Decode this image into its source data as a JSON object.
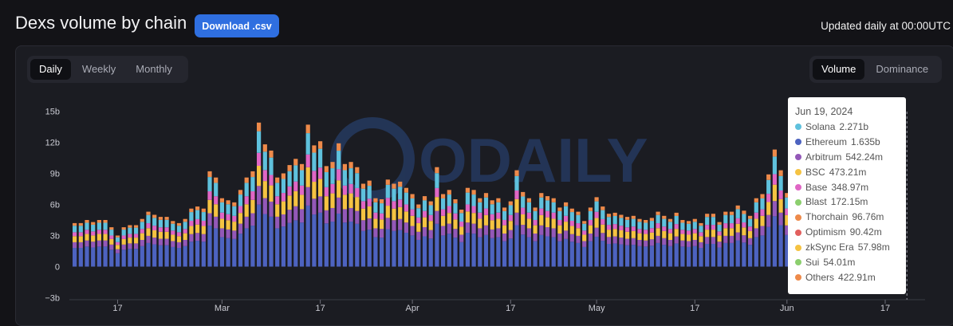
{
  "header": {
    "title": "Dexs volume by chain",
    "download_label": "Download .csv",
    "updated_text": "Updated daily at 00:00UTC"
  },
  "tabs": {
    "period": [
      "Daily",
      "Weekly",
      "Monthly"
    ],
    "period_active": "Daily",
    "mode": [
      "Volume",
      "Dominance"
    ],
    "mode_active": "Volume"
  },
  "watermark": "ODAILY",
  "tooltip": {
    "date": "Jun 19, 2024",
    "rows": [
      {
        "name": "Solana",
        "value": "2.271b",
        "color": "#5fc1dd"
      },
      {
        "name": "Ethereum",
        "value": "1.635b",
        "color": "#4d63c0"
      },
      {
        "name": "Arbitrum",
        "value": "542.24m",
        "color": "#9358b8"
      },
      {
        "name": "BSC",
        "value": "473.21m",
        "color": "#f5c342"
      },
      {
        "name": "Base",
        "value": "348.97m",
        "color": "#e066c5"
      },
      {
        "name": "Blast",
        "value": "172.15m",
        "color": "#8ccf6e"
      },
      {
        "name": "Thorchain",
        "value": "96.76m",
        "color": "#ee8a4a"
      },
      {
        "name": "Optimism",
        "value": "90.42m",
        "color": "#e2605e"
      },
      {
        "name": "zkSync Era",
        "value": "57.98m",
        "color": "#f5c342"
      },
      {
        "name": "Sui",
        "value": "54.01m",
        "color": "#8ccf6e"
      },
      {
        "name": "Others",
        "value": "422.91m",
        "color": "#ee8a4a"
      }
    ]
  },
  "chart_data": {
    "type": "bar",
    "stacked": true,
    "yticks": [
      "15b",
      "12b",
      "9b",
      "6b",
      "3b",
      "0",
      "−3b"
    ],
    "ylim": [
      -3,
      15
    ],
    "xticks": [
      {
        "label": "17",
        "index": 7
      },
      {
        "label": "Mar",
        "index": 24
      },
      {
        "label": "17",
        "index": 40
      },
      {
        "label": "Apr",
        "index": 55
      },
      {
        "label": "17",
        "index": 71
      },
      {
        "label": "May",
        "index": 85
      },
      {
        "label": "17",
        "index": 101
      },
      {
        "label": "Jun",
        "index": 116
      },
      {
        "label": "17",
        "index": 132
      }
    ],
    "series": [
      {
        "name": "Ethereum",
        "color": "#4d63c0"
      },
      {
        "name": "Arbitrum",
        "color": "#9358b8"
      },
      {
        "name": "BSC",
        "color": "#f5c342"
      },
      {
        "name": "Base",
        "color": "#e066c5"
      },
      {
        "name": "Solana",
        "color": "#5fc1dd"
      },
      {
        "name": "Others",
        "color": "#ee8a4a"
      }
    ],
    "totals": [
      4.2,
      4.2,
      4.5,
      4.3,
      4.5,
      4.5,
      3.8,
      3.0,
      3.8,
      4.0,
      4.0,
      4.6,
      5.3,
      5.0,
      4.8,
      4.8,
      4.4,
      4.2,
      4.6,
      5.6,
      5.8,
      5.6,
      9.2,
      8.6,
      6.6,
      6.4,
      6.2,
      7.4,
      8.6,
      9.2,
      13.9,
      11.8,
      11.2,
      8.6,
      9.0,
      9.8,
      10.4,
      9.9,
      13.7,
      11.7,
      12.1,
      9.7,
      10.1,
      11.9,
      9.9,
      10.1,
      9.6,
      8.0,
      8.3,
      6.6,
      6.5,
      8.4,
      8.0,
      8.2,
      7.6,
      7.0,
      6.0,
      6.8,
      6.3,
      9.6,
      7.0,
      7.4,
      6.5,
      5.5,
      7.6,
      7.4,
      6.6,
      7.1,
      6.4,
      6.6,
      5.7,
      6.3,
      9.3,
      7.2,
      6.6,
      5.7,
      7.1,
      6.8,
      6.6,
      5.7,
      6.2,
      5.6,
      5.3,
      4.4,
      5.7,
      6.7,
      5.8,
      5.1,
      5.2,
      5.0,
      4.8,
      4.9,
      4.6,
      4.5,
      4.7,
      5.3,
      4.9,
      4.6,
      5.2,
      4.5,
      4.4,
      4.6,
      4.2,
      5.1,
      5.1,
      4.3,
      5.3,
      5.3,
      5.9,
      5.4,
      4.9,
      6.6,
      7.0,
      8.9,
      11.3,
      9.3,
      7.1,
      5.7,
      4.8,
      6.1,
      8.0,
      7.0,
      6.2,
      5.5,
      4.9,
      6.8,
      7.5,
      8.9,
      6.6,
      7.2,
      7.1,
      7.6,
      7.5,
      6.4,
      5.7,
      6.1
    ],
    "composition": [
      0.43,
      0.13,
      0.14,
      0.09,
      0.15,
      0.06
    ],
    "highlight_index": 135
  }
}
